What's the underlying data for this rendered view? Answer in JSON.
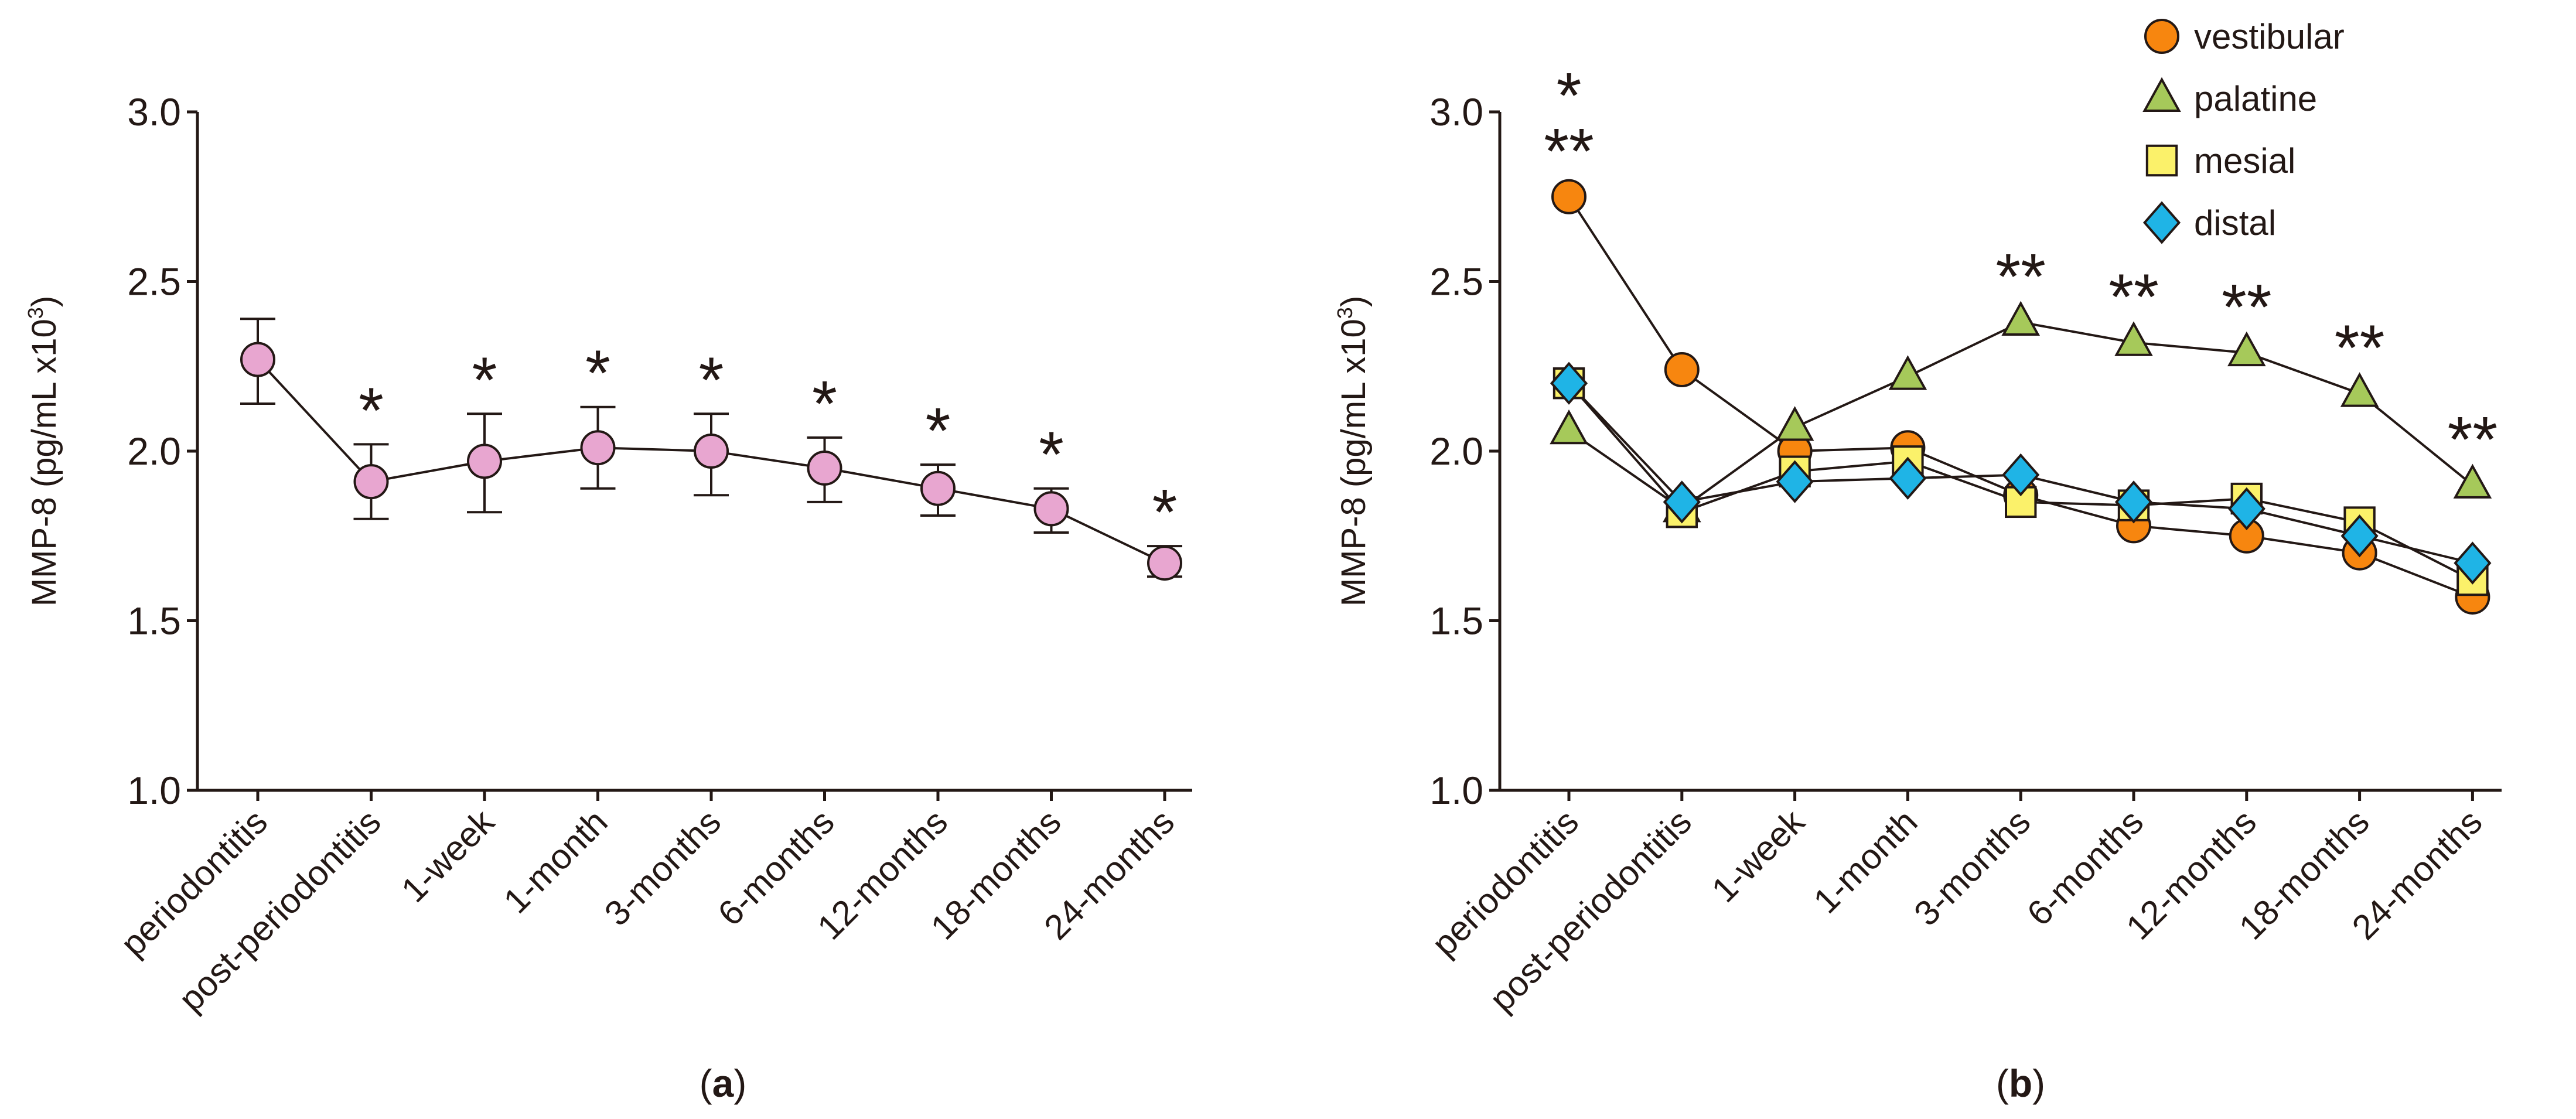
{
  "chart_data": [
    {
      "type": "line",
      "panel_label": "a",
      "ylabel": "MMP-8 (pg/mL x10",
      "ylabel_sup": "3",
      "ylabel_close": ")",
      "ylim": [
        1.0,
        3.0
      ],
      "yticks": [
        "1.0",
        "1.5",
        "2.0",
        "2.5",
        "3.0"
      ],
      "categories": [
        "periodontitis",
        "post-periodontitis",
        "1-week",
        "1-month",
        "3-months",
        "6-months",
        "12-months",
        "18-months",
        "24-months"
      ],
      "series": [
        {
          "name": "MMP-8",
          "color": "#e8a6d0",
          "marker": "circle",
          "values": [
            2.27,
            1.91,
            1.97,
            2.01,
            2.0,
            1.95,
            1.89,
            1.83,
            1.67
          ],
          "error_upper": [
            2.39,
            2.02,
            2.11,
            2.13,
            2.11,
            2.04,
            1.96,
            1.89,
            1.72
          ],
          "error_lower": [
            2.14,
            1.8,
            1.82,
            1.89,
            1.87,
            1.85,
            1.81,
            1.76,
            1.63
          ]
        }
      ],
      "annotations": [
        "",
        "*",
        "*",
        "*",
        "*",
        "*",
        "*",
        "*",
        "*"
      ]
    },
    {
      "type": "line",
      "panel_label": "b",
      "ylabel": "MMP-8 (pg/mL x10",
      "ylabel_sup": "3",
      "ylabel_close": ")",
      "ylim": [
        1.0,
        3.0
      ],
      "yticks": [
        "1.0",
        "1.5",
        "2.0",
        "2.5",
        "3.0"
      ],
      "categories": [
        "periodontitis",
        "post-periodontitis",
        "1-week",
        "1-month",
        "3-months",
        "6-months",
        "12-months",
        "18-months",
        "24-months"
      ],
      "legend_position": "top-right",
      "series": [
        {
          "name": "vestibular",
          "color": "#f7860f",
          "marker": "circle",
          "values": [
            2.75,
            2.24,
            2.0,
            2.01,
            1.87,
            1.78,
            1.75,
            1.7,
            1.57
          ]
        },
        {
          "name": "palatine",
          "color": "#a6c95a",
          "marker": "triangle",
          "values": [
            2.06,
            1.83,
            2.07,
            2.22,
            2.38,
            2.32,
            2.29,
            2.17,
            1.9
          ]
        },
        {
          "name": "mesial",
          "color": "#fbf16a",
          "marker": "square",
          "values": [
            2.2,
            1.82,
            1.94,
            1.97,
            1.85,
            1.84,
            1.86,
            1.79,
            1.62
          ]
        },
        {
          "name": "distal",
          "color": "#1fb4e6",
          "marker": "diamond",
          "values": [
            2.2,
            1.85,
            1.91,
            1.92,
            1.93,
            1.85,
            1.83,
            1.75,
            1.67
          ]
        }
      ],
      "annotations": [
        [
          "*",
          "**"
        ],
        [],
        [],
        [],
        [
          "**"
        ],
        [
          "**"
        ],
        [
          "**"
        ],
        [
          "**"
        ],
        [
          "**"
        ]
      ]
    }
  ]
}
